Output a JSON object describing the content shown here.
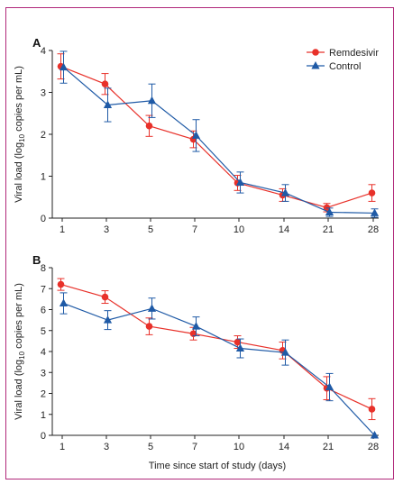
{
  "colors": {
    "remdesivir": "#e8312a",
    "control": "#1f5aa6",
    "axis": "#222222",
    "frame": "#b0287a"
  },
  "chart_data": [
    {
      "type": "line",
      "panel_label": "A",
      "categories": [
        "1",
        "3",
        "5",
        "7",
        "10",
        "14",
        "21",
        "28"
      ],
      "ylim": [
        0,
        4
      ],
      "yticks": [
        0,
        1,
        2,
        3,
        4
      ],
      "ylabel": {
        "pre": "Viral load (log",
        "sub": "10",
        "post": " copies per mL)"
      },
      "xlabel": "",
      "legend": "top-right",
      "series": [
        {
          "name": "Remdesivir",
          "marker": "circle",
          "values": [
            3.62,
            3.2,
            2.2,
            1.88,
            0.84,
            0.55,
            0.25,
            0.6
          ],
          "err": [
            0.3,
            0.25,
            0.25,
            0.2,
            0.18,
            0.15,
            0.1,
            0.2
          ]
        },
        {
          "name": "Control",
          "marker": "triangle",
          "values": [
            3.6,
            2.7,
            2.8,
            1.97,
            0.85,
            0.6,
            0.14,
            0.12
          ],
          "err": [
            0.38,
            0.4,
            0.4,
            0.38,
            0.25,
            0.2,
            0.1,
            0.1
          ]
        }
      ]
    },
    {
      "type": "line",
      "panel_label": "B",
      "categories": [
        "1",
        "3",
        "5",
        "7",
        "10",
        "14",
        "21",
        "28"
      ],
      "ylim": [
        0,
        8
      ],
      "yticks": [
        0,
        1,
        2,
        3,
        4,
        5,
        6,
        7,
        8
      ],
      "ylabel": {
        "pre": "Viral load (log",
        "sub": "10",
        "post": " copies per mL)"
      },
      "xlabel": "Time since start of study (days)",
      "legend": "none",
      "series": [
        {
          "name": "Remdesivir",
          "marker": "circle",
          "values": [
            7.2,
            6.6,
            5.2,
            4.85,
            4.45,
            4.05,
            2.25,
            1.25
          ],
          "err": [
            0.28,
            0.3,
            0.4,
            0.3,
            0.3,
            0.4,
            0.55,
            0.5
          ]
        },
        {
          "name": "Control",
          "marker": "triangle",
          "values": [
            6.3,
            5.5,
            6.05,
            5.2,
            4.15,
            3.95,
            2.3,
            0.0
          ],
          "err": [
            0.5,
            0.45,
            0.5,
            0.45,
            0.45,
            0.6,
            0.65,
            0.0
          ]
        }
      ]
    }
  ]
}
